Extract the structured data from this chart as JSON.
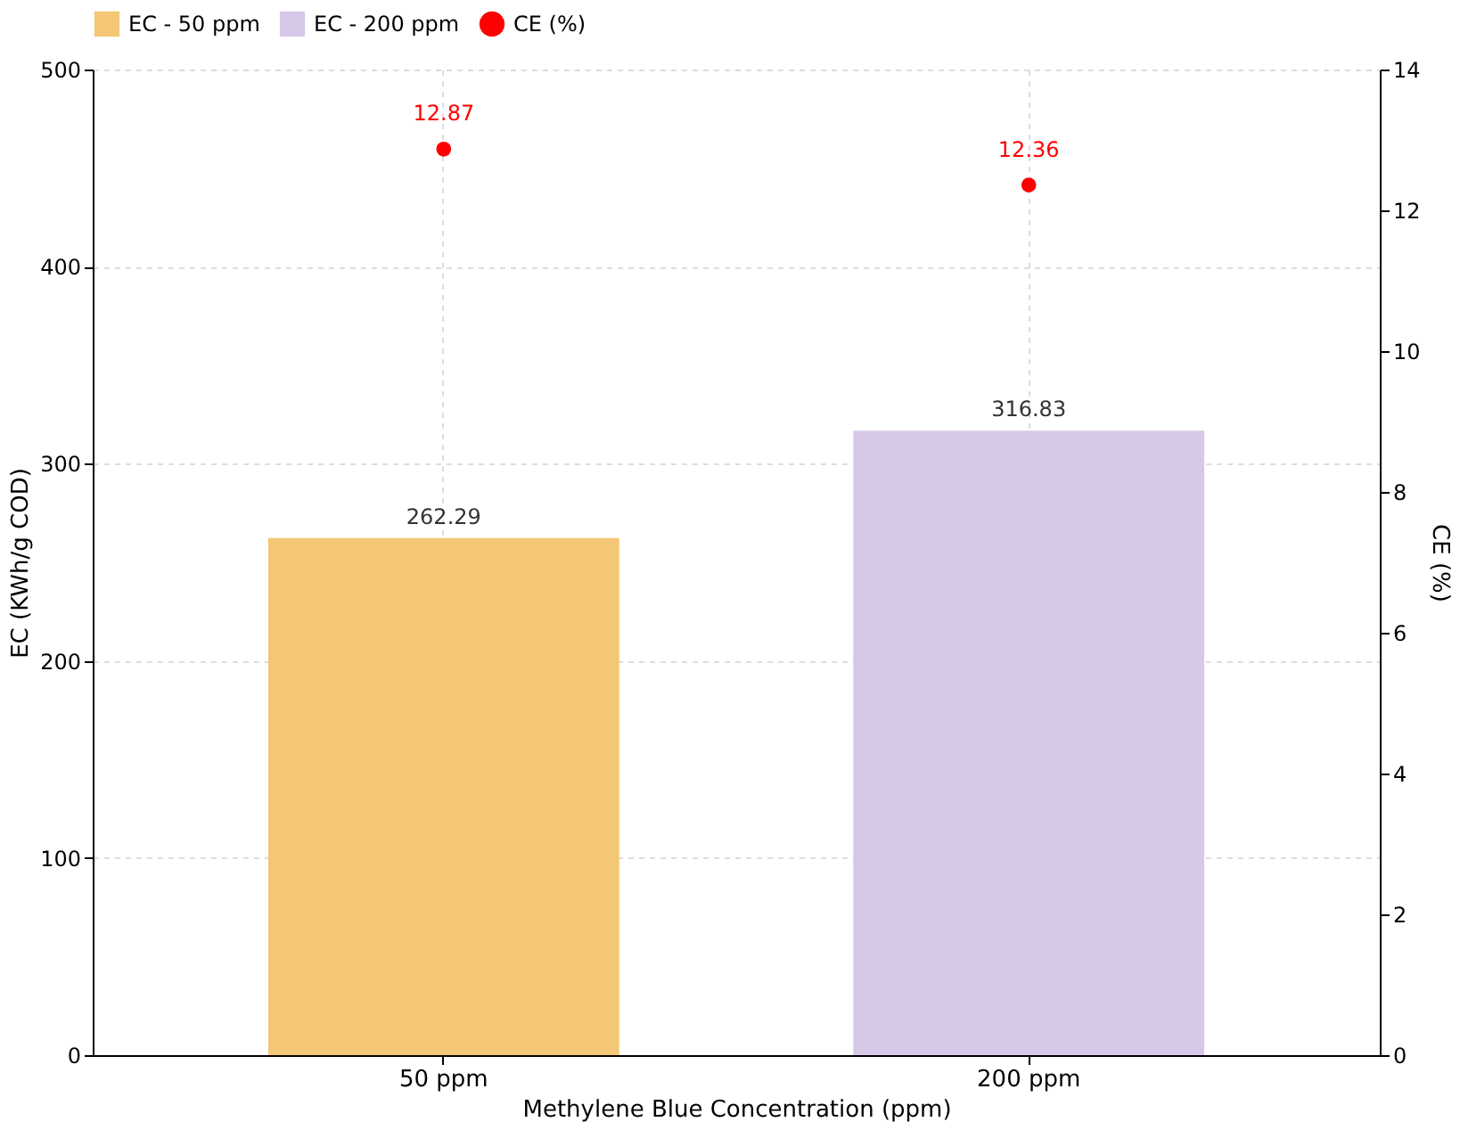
{
  "chart_data": {
    "type": "bar",
    "xlabel": "Methylene Blue Concentration (ppm)",
    "ylabel": "EC (KWh/g COD)",
    "y2label": "CE (%)",
    "categories": [
      "50 ppm",
      "200 ppm"
    ],
    "series": [
      {
        "name": "EC - 50 ppm",
        "color": "#f4c777",
        "values": [
          262.29,
          null
        ]
      },
      {
        "name": "EC - 200 ppm",
        "color": "#d8c8e8",
        "values": [
          null,
          316.83
        ]
      },
      {
        "name": "CE (%)",
        "color": "#ff0000",
        "type": "scatter",
        "axis": "y2",
        "marker": "circle",
        "values": [
          12.87,
          12.36
        ]
      }
    ],
    "ylim": [
      0,
      500
    ],
    "yticks": [
      0,
      100,
      200,
      300,
      400,
      500
    ],
    "y2lim": [
      0,
      14
    ],
    "y2ticks": [
      0,
      2,
      4,
      6,
      8,
      10,
      12,
      14
    ],
    "data_labels": true,
    "grid": true,
    "legend": "top"
  }
}
